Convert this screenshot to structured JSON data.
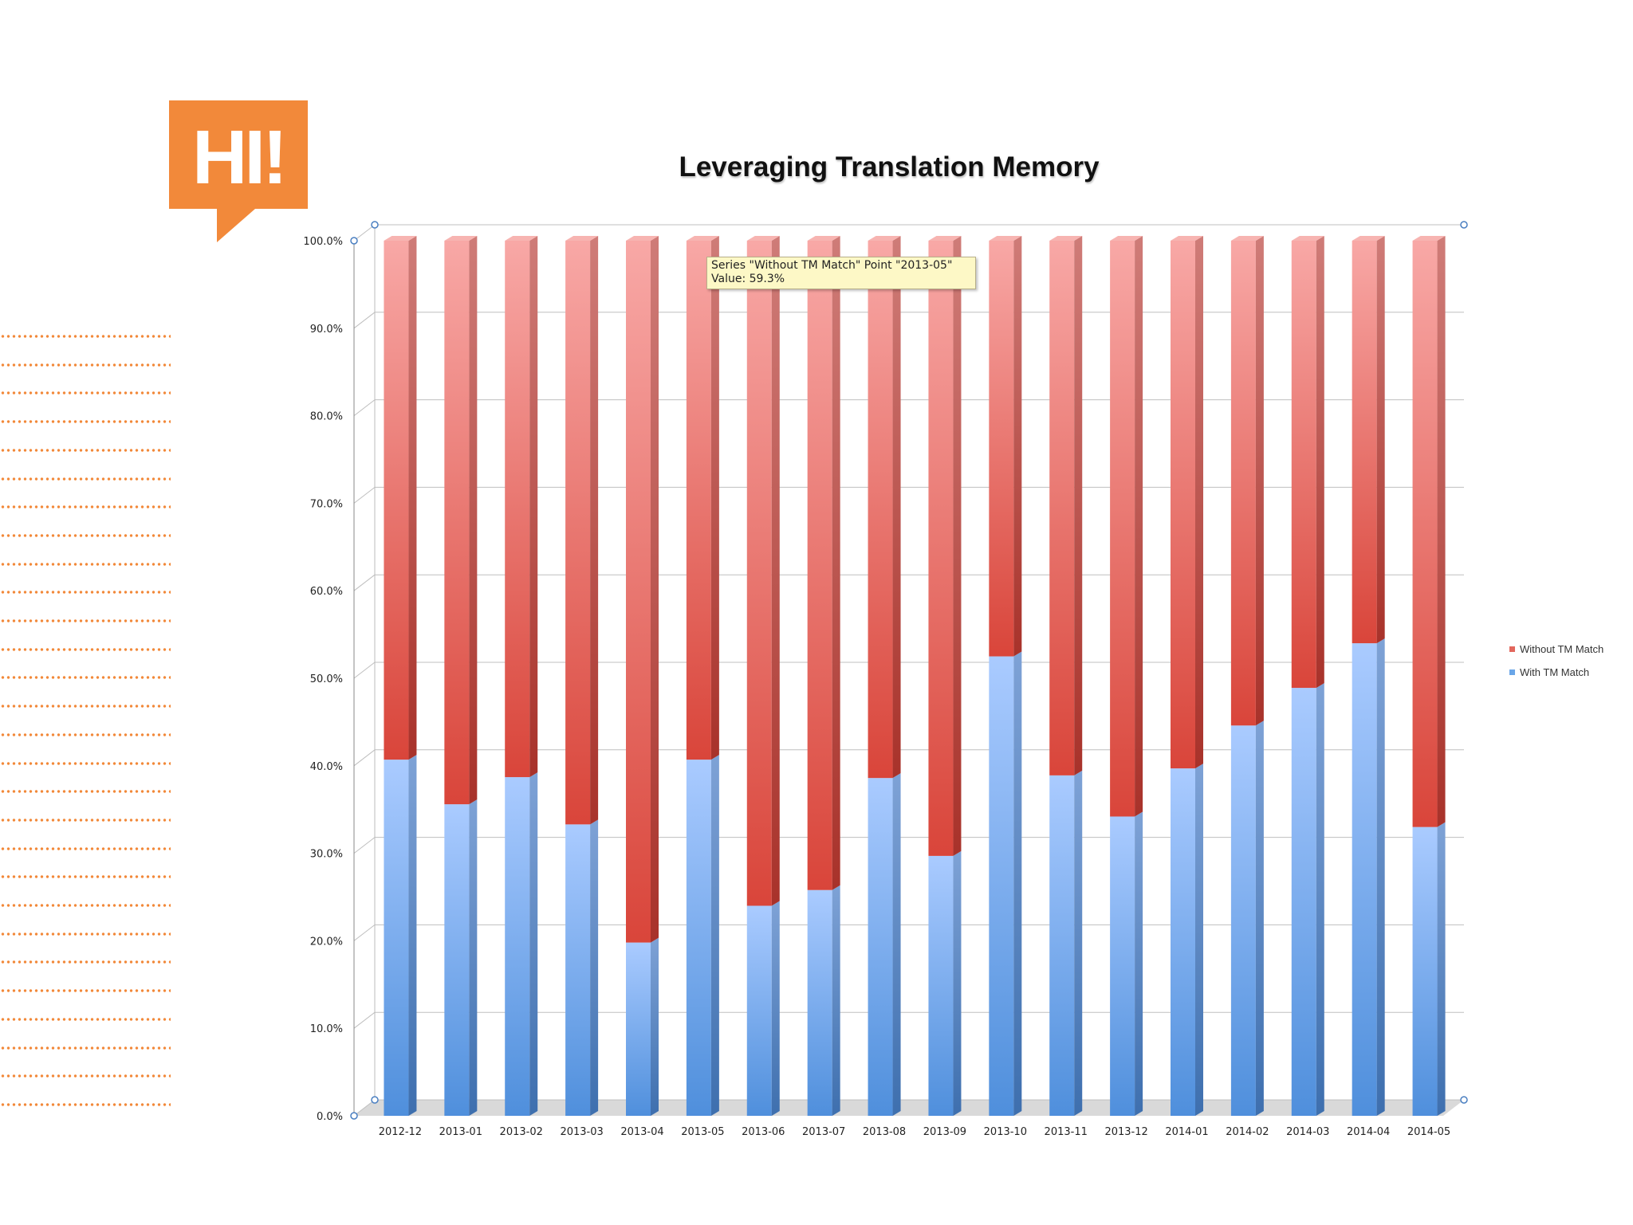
{
  "badge": {
    "text": "HI!",
    "color": "#f2893a"
  },
  "tooltip": {
    "line1": "Series \"Without TM Match\" Point \"2013-05\"",
    "line2": "Value: 59.3%"
  },
  "chart_data": {
    "type": "bar",
    "stacked": true,
    "percent": true,
    "title": "Leveraging Translation Memory",
    "xlabel": "",
    "ylabel": "",
    "ylim": [
      0,
      100
    ],
    "yticks": [
      "0.0%",
      "10.0%",
      "20.0%",
      "30.0%",
      "40.0%",
      "50.0%",
      "60.0%",
      "70.0%",
      "80.0%",
      "90.0%",
      "100.0%"
    ],
    "categories": [
      "2012-12",
      "2013-01",
      "2013-02",
      "2013-03",
      "2013-04",
      "2013-05",
      "2013-06",
      "2013-07",
      "2013-08",
      "2013-09",
      "2013-10",
      "2013-11",
      "2013-12",
      "2014-01",
      "2014-02",
      "2014-03",
      "2014-04",
      "2014-05"
    ],
    "series": [
      {
        "name": "With TM Match",
        "color": "#6aa6e8",
        "values": [
          40.7,
          35.6,
          38.7,
          33.3,
          19.8,
          40.7,
          24.0,
          25.8,
          38.6,
          29.7,
          52.5,
          38.9,
          34.2,
          39.7,
          44.6,
          48.9,
          54.0,
          33.0
        ]
      },
      {
        "name": "Without TM Match",
        "color": "#e2675d",
        "values": [
          59.3,
          64.4,
          61.3,
          66.7,
          80.2,
          59.3,
          76.0,
          74.2,
          61.4,
          70.3,
          47.5,
          61.1,
          65.8,
          60.3,
          55.4,
          51.1,
          46.0,
          67.0
        ]
      }
    ],
    "grid": true,
    "legend_position": "right"
  }
}
